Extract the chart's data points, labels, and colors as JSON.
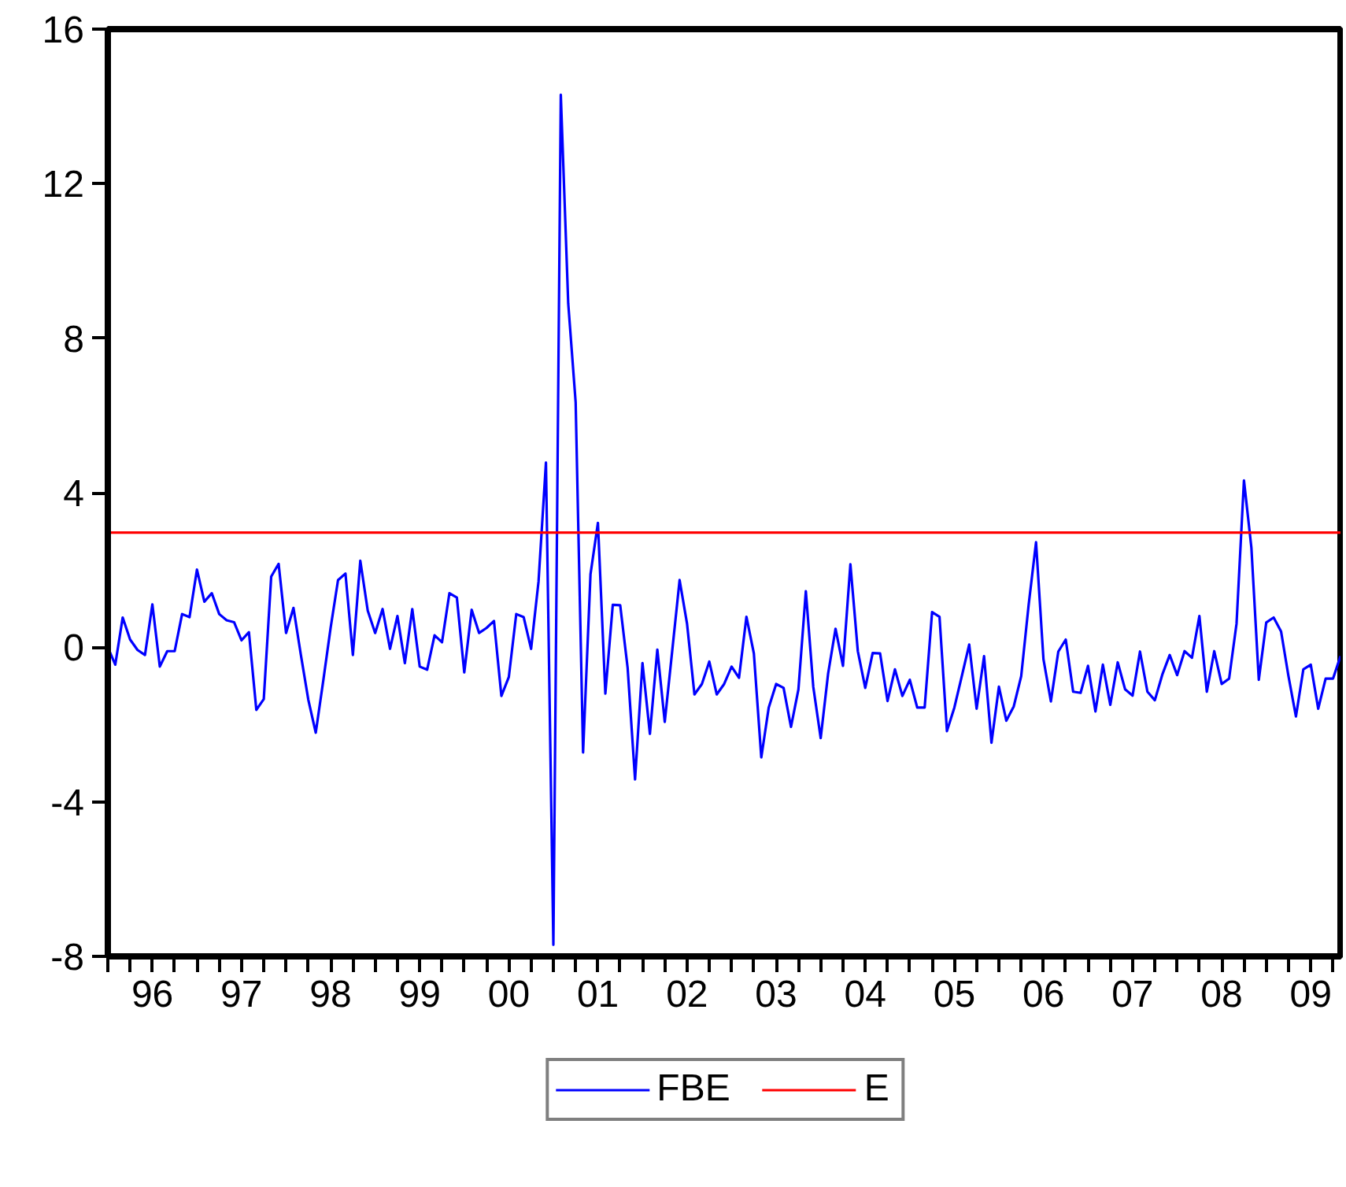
{
  "chart_data": {
    "type": "line",
    "x": [
      "1996-01",
      "1996-02",
      "1996-03",
      "1996-04",
      "1996-05",
      "1996-06",
      "1996-07",
      "1996-08",
      "1996-09",
      "1996-10",
      "1996-11",
      "1996-12",
      "1997-01",
      "1997-02",
      "1997-03",
      "1997-04",
      "1997-05",
      "1997-06",
      "1997-07",
      "1997-08",
      "1997-09",
      "1997-10",
      "1997-11",
      "1997-12",
      "1998-01",
      "1998-02",
      "1998-03",
      "1998-04",
      "1998-05",
      "1998-06",
      "1998-07",
      "1998-08",
      "1998-09",
      "1998-10",
      "1998-11",
      "1998-12",
      "1999-01",
      "1999-02",
      "1999-03",
      "1999-04",
      "1999-05",
      "1999-06",
      "1999-07",
      "1999-08",
      "1999-09",
      "1999-10",
      "1999-11",
      "1999-12",
      "2000-01",
      "2000-02",
      "2000-03",
      "2000-04",
      "2000-05",
      "2000-06",
      "2000-07",
      "2000-08",
      "2000-09",
      "2000-10",
      "2000-11",
      "2000-12",
      "2001-01",
      "2001-02",
      "2001-03",
      "2001-04",
      "2001-05",
      "2001-06",
      "2001-07",
      "2001-08",
      "2001-09",
      "2001-10",
      "2001-11",
      "2001-12",
      "2002-01",
      "2002-02",
      "2002-03",
      "2002-04",
      "2002-05",
      "2002-06",
      "2002-07",
      "2002-08",
      "2002-09",
      "2002-10",
      "2002-11",
      "2002-12",
      "2003-01",
      "2003-02",
      "2003-03",
      "2003-04",
      "2003-05",
      "2003-06",
      "2003-07",
      "2003-08",
      "2003-09",
      "2003-10",
      "2003-11",
      "2003-12",
      "2004-01",
      "2004-02",
      "2004-03",
      "2004-04",
      "2004-05",
      "2004-06",
      "2004-07",
      "2004-08",
      "2004-09",
      "2004-10",
      "2004-11",
      "2004-12",
      "2005-01",
      "2005-02",
      "2005-03",
      "2005-04",
      "2005-05",
      "2005-06",
      "2005-07",
      "2005-08",
      "2005-09",
      "2005-10",
      "2005-11",
      "2005-12",
      "2006-01",
      "2006-02",
      "2006-03",
      "2006-04",
      "2006-05",
      "2006-06",
      "2006-07",
      "2006-08",
      "2006-09",
      "2006-10",
      "2006-11",
      "2006-12",
      "2007-01",
      "2007-02",
      "2007-03",
      "2007-04",
      "2007-05",
      "2007-06",
      "2007-07",
      "2007-08",
      "2007-09",
      "2007-10",
      "2007-11",
      "2007-12",
      "2008-01",
      "2008-02",
      "2008-03",
      "2008-04",
      "2008-05",
      "2008-06",
      "2008-07",
      "2008-08",
      "2008-09",
      "2008-10",
      "2008-11",
      "2008-12",
      "2009-01",
      "2009-02",
      "2009-03",
      "2009-04",
      "2009-05",
      "2009-06",
      "2009-07",
      "2009-08",
      "2009-09",
      "2009-10",
      "2009-11"
    ],
    "series": [
      {
        "name": "FBE",
        "color": "#0000ff",
        "values": [
          0,
          -0.45,
          0.77,
          0.2,
          -0.07,
          -0.2,
          1.11,
          -0.5,
          -0.1,
          -0.1,
          0.86,
          0.78,
          2.01,
          1.18,
          1.4,
          0.86,
          0.7,
          0.65,
          0.18,
          0.39,
          -1.62,
          -1.34,
          1.83,
          2.16,
          0.37,
          1.02,
          -0.2,
          -1.36,
          -2.21,
          -0.88,
          0.5,
          1.74,
          1.91,
          -0.2,
          2.24,
          0.95,
          0.37,
          0.99,
          -0.04,
          0.81,
          -0.41,
          0.99,
          -0.5,
          -0.58,
          0.31,
          0.13,
          1.4,
          1.29,
          -0.65,
          0.97,
          0.37,
          0.5,
          0.68,
          -1.26,
          -0.77,
          0.86,
          0.78,
          -0.04,
          1.7,
          4.78,
          -7.7,
          14.3,
          8.9,
          6.34,
          -2.72,
          1.89,
          3.22,
          -1.2,
          1.1,
          1.09,
          -0.53,
          -3.42,
          -0.41,
          -2.24,
          -0.06,
          -1.93,
          -0.1,
          1.74,
          0.61,
          -1.22,
          -0.95,
          -0.37,
          -1.22,
          -0.95,
          -0.5,
          -0.79,
          0.79,
          -0.16,
          -2.85,
          -1.56,
          -0.95,
          -1.05,
          -2.06,
          -1.09,
          1.45,
          -1.02,
          -2.35,
          -0.68,
          0.48,
          -0.48,
          2.15,
          -0.1,
          -1.05,
          -0.15,
          -0.16,
          -1.39,
          -0.57,
          -1.26,
          -0.84,
          -1.56,
          -1.56,
          0.91,
          0.79,
          -2.17,
          -1.56,
          -0.75,
          0.07,
          -1.59,
          -0.23,
          -2.47,
          -1.02,
          -1.9,
          -1.53,
          -0.75,
          1.09,
          2.72,
          -0.31,
          -1.4,
          -0.11,
          0.2,
          -1.15,
          -1.18,
          -0.48,
          -1.66,
          -0.45,
          -1.49,
          -0.39,
          -1.09,
          -1.25,
          -0.11,
          -1.15,
          -1.37,
          -0.71,
          -0.2,
          -0.72,
          -0.1,
          -0.27,
          0.81,
          -1.15,
          -0.1,
          -0.95,
          -0.81,
          0.61,
          4.32,
          2.58,
          -0.84,
          0.64,
          0.77,
          0.41,
          -0.75,
          -1.79,
          -0.57,
          -0.45,
          -1.59,
          -0.81,
          -0.81,
          -0.23
        ]
      }
    ],
    "ref_lines": [
      {
        "axis": "y",
        "value": 2.97,
        "label": "E",
        "color": "#ff0000",
        "line_style": "solid"
      }
    ],
    "xlim": [
      "1996-01",
      "2009-11"
    ],
    "xticks": [
      {
        "value": "1996-01",
        "label": null
      },
      {
        "value": "1996-04",
        "label": null
      },
      {
        "value": "1996-07",
        "label": "96"
      },
      {
        "value": "1996-10",
        "label": null
      },
      {
        "value": "1997-01",
        "label": null
      },
      {
        "value": "1997-04",
        "label": null
      },
      {
        "value": "1997-07",
        "label": "97"
      },
      {
        "value": "1997-10",
        "label": null
      },
      {
        "value": "1998-01",
        "label": null
      },
      {
        "value": "1998-04",
        "label": null
      },
      {
        "value": "1998-07",
        "label": "98"
      },
      {
        "value": "1998-10",
        "label": null
      },
      {
        "value": "1999-01",
        "label": null
      },
      {
        "value": "1999-04",
        "label": null
      },
      {
        "value": "1999-07",
        "label": "99"
      },
      {
        "value": "1999-10",
        "label": null
      },
      {
        "value": "2000-01",
        "label": null
      },
      {
        "value": "2000-04",
        "label": null
      },
      {
        "value": "2000-07",
        "label": "00"
      },
      {
        "value": "2000-10",
        "label": null
      },
      {
        "value": "2001-01",
        "label": null
      },
      {
        "value": "2001-04",
        "label": null
      },
      {
        "value": "2001-07",
        "label": "01"
      },
      {
        "value": "2001-10",
        "label": null
      },
      {
        "value": "2002-01",
        "label": null
      },
      {
        "value": "2002-04",
        "label": null
      },
      {
        "value": "2002-07",
        "label": "02"
      },
      {
        "value": "2002-10",
        "label": null
      },
      {
        "value": "2003-01",
        "label": null
      },
      {
        "value": "2003-04",
        "label": null
      },
      {
        "value": "2003-07",
        "label": "03"
      },
      {
        "value": "2003-10",
        "label": null
      },
      {
        "value": "2004-01",
        "label": null
      },
      {
        "value": "2004-04",
        "label": null
      },
      {
        "value": "2004-07",
        "label": "04"
      },
      {
        "value": "2004-10",
        "label": null
      },
      {
        "value": "2005-01",
        "label": null
      },
      {
        "value": "2005-04",
        "label": null
      },
      {
        "value": "2005-07",
        "label": "05"
      },
      {
        "value": "2005-10",
        "label": null
      },
      {
        "value": "2006-01",
        "label": null
      },
      {
        "value": "2006-04",
        "label": null
      },
      {
        "value": "2006-07",
        "label": "06"
      },
      {
        "value": "2006-10",
        "label": null
      },
      {
        "value": "2007-01",
        "label": null
      },
      {
        "value": "2007-04",
        "label": null
      },
      {
        "value": "2007-07",
        "label": "07"
      },
      {
        "value": "2007-10",
        "label": null
      },
      {
        "value": "2008-01",
        "label": null
      },
      {
        "value": "2008-04",
        "label": null
      },
      {
        "value": "2008-07",
        "label": "08"
      },
      {
        "value": "2008-10",
        "label": null
      },
      {
        "value": "2009-01",
        "label": null
      },
      {
        "value": "2009-04",
        "label": null
      },
      {
        "value": "2009-07",
        "label": "09"
      },
      {
        "value": "2009-10",
        "label": null
      }
    ],
    "ylim": [
      -8,
      16
    ],
    "yticks": [
      -8,
      -4,
      0,
      4,
      8,
      12,
      16
    ],
    "grid": false,
    "legend": "bottom",
    "marker": "none",
    "line_style": "solid"
  }
}
